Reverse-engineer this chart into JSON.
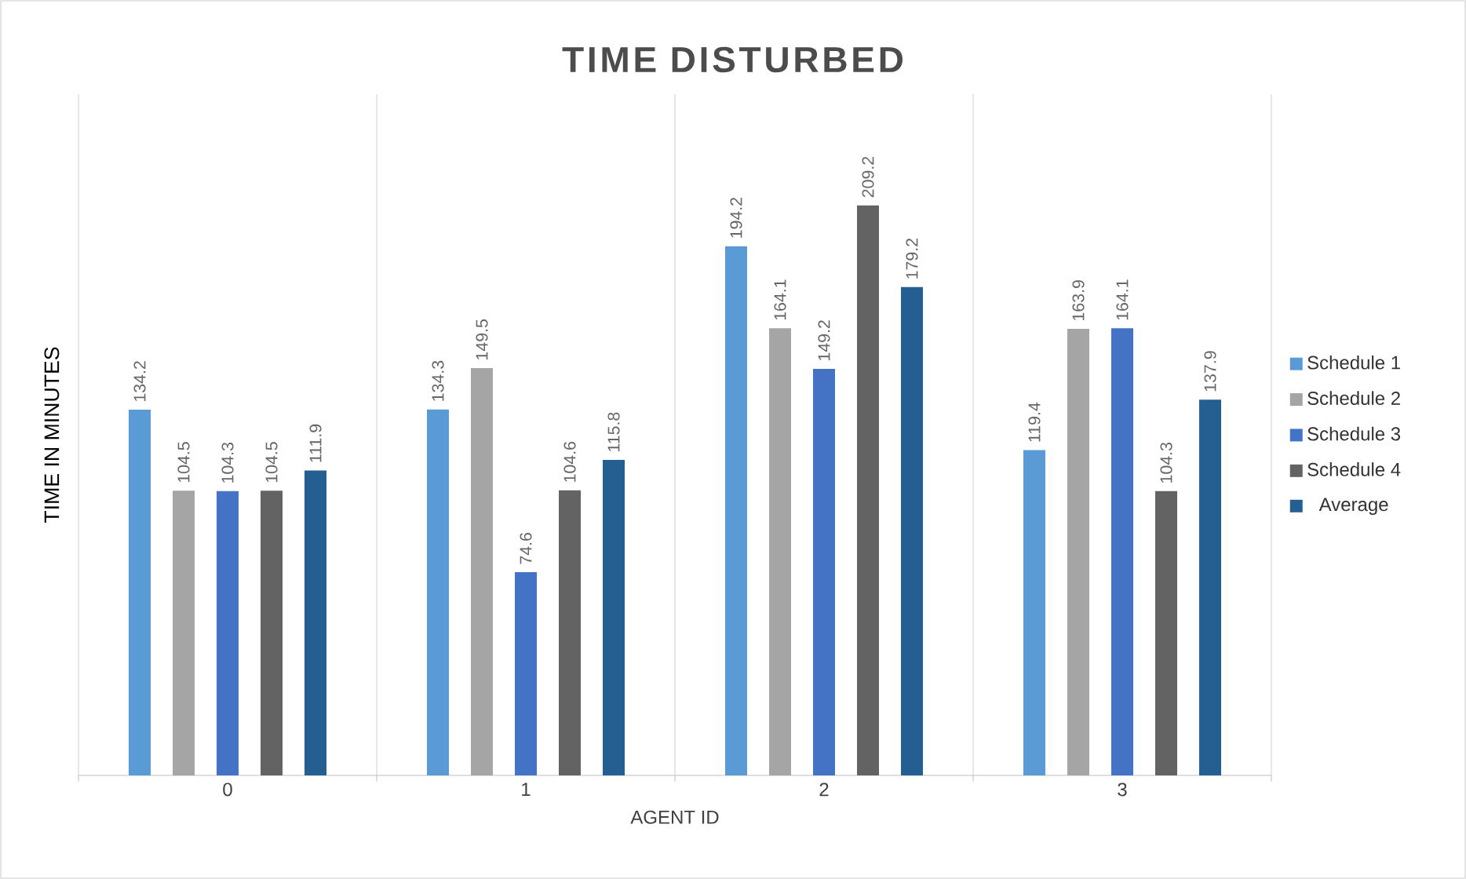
{
  "chart_data": {
    "type": "bar",
    "title": "TIME DISTURBED",
    "xlabel": "AGENT ID",
    "ylabel": "TIME IN MINUTES",
    "categories": [
      "0",
      "1",
      "2",
      "3"
    ],
    "series": [
      {
        "name": "Schedule 1",
        "color": "#5b9bd5",
        "values": [
          134.2,
          134.3,
          194.2,
          119.4
        ]
      },
      {
        "name": "Schedule 2",
        "color": "#a5a5a5",
        "values": [
          104.5,
          149.5,
          164.1,
          163.9
        ]
      },
      {
        "name": "Schedule 3",
        "color": "#4472c4",
        "values": [
          104.3,
          74.6,
          149.2,
          164.1
        ]
      },
      {
        "name": "Schedule 4",
        "color": "#636363",
        "values": [
          104.5,
          104.6,
          209.2,
          104.3
        ]
      },
      {
        "name": "Average",
        "color": "#255e91",
        "values": [
          111.9,
          115.8,
          179.2,
          137.9
        ]
      }
    ],
    "ylim": [
      0,
      250
    ],
    "data_labels": true,
    "grid": "x",
    "legend": "right",
    "tick_labels": "x"
  }
}
